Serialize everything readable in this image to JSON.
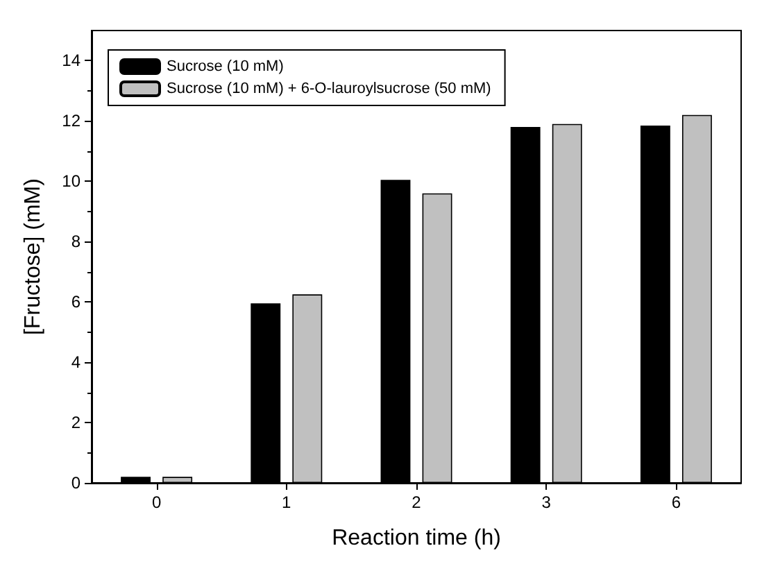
{
  "chart_data": {
    "type": "bar",
    "xlabel": "Reaction time (h)",
    "ylabel": "[Fructose] (mM)",
    "categories": [
      "0",
      "1",
      "2",
      "3",
      "6"
    ],
    "series": [
      {
        "name": "Sucrose (10 mM)",
        "color": "#000000",
        "values": [
          0.2,
          5.95,
          10.05,
          11.8,
          11.85
        ]
      },
      {
        "name": "Sucrose (10 mM) + 6-O-lauroylsucrose (50 mM)",
        "color": "#c0c0c0",
        "values": [
          0.2,
          6.25,
          9.6,
          11.9,
          12.2
        ]
      }
    ],
    "ylim": [
      0,
      15
    ],
    "yticks": [
      0,
      2,
      4,
      6,
      8,
      10,
      12,
      14
    ],
    "grid": false,
    "legend": "top left"
  }
}
